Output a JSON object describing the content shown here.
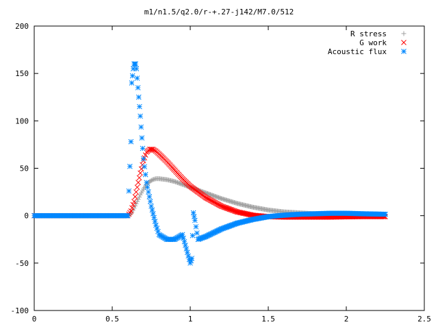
{
  "chart_data": {
    "type": "scatter",
    "title": "m1/n1.5/q2.0/r-+.27-j142/M7.0/512",
    "xlabel": "",
    "ylabel": "",
    "xlim": [
      0,
      2.5
    ],
    "ylim": [
      -100,
      200
    ],
    "x_ticks": [
      "0",
      "0.5",
      "1",
      "1.5",
      "2",
      "2.5"
    ],
    "y_ticks": [
      "-100",
      "-50",
      "0",
      "50",
      "100",
      "150",
      "200"
    ],
    "grid": false,
    "legend_position": "top-right",
    "series": [
      {
        "name": "R stress",
        "marker": "+",
        "color": "#a0a0a0",
        "x": [
          0.0,
          0.3,
          0.6,
          0.62,
          0.64,
          0.66,
          0.68,
          0.7,
          0.72,
          0.74,
          0.76,
          0.78,
          0.8,
          0.85,
          0.9,
          0.95,
          1.0,
          1.05,
          1.1,
          1.2,
          1.3,
          1.4,
          1.5,
          1.6,
          1.7,
          1.8,
          1.9,
          2.0,
          2.1,
          2.25
        ],
        "y": [
          0,
          0,
          0,
          2,
          8,
          15,
          22,
          28,
          33,
          36,
          38,
          39,
          39,
          38,
          36,
          33,
          30,
          27,
          24,
          18,
          13,
          9,
          6,
          4,
          3,
          2,
          1.5,
          1,
          0.5,
          0
        ]
      },
      {
        "name": "G work",
        "marker": "x",
        "color": "#ff0000",
        "x": [
          0.0,
          0.3,
          0.6,
          0.62,
          0.64,
          0.66,
          0.68,
          0.7,
          0.72,
          0.74,
          0.76,
          0.78,
          0.8,
          0.85,
          0.9,
          0.95,
          1.0,
          1.1,
          1.2,
          1.3,
          1.4,
          1.5,
          1.6,
          1.7,
          1.8,
          1.9,
          2.0,
          2.1,
          2.25
        ],
        "y": [
          0,
          0,
          0,
          5,
          15,
          30,
          45,
          58,
          67,
          70,
          70,
          68,
          65,
          57,
          48,
          39,
          31,
          19,
          10,
          4,
          0.5,
          -1,
          -1.5,
          -1.5,
          -1.5,
          -1.5,
          -1.2,
          -1,
          -1
        ]
      },
      {
        "name": "Acoustic flux",
        "marker": "*",
        "color": "#0088ff",
        "x": [
          0.0,
          0.3,
          0.6,
          0.62,
          0.625,
          0.635,
          0.64,
          0.65,
          0.655,
          0.66,
          0.67,
          0.68,
          0.69,
          0.7,
          0.72,
          0.75,
          0.78,
          0.8,
          0.85,
          0.9,
          0.95,
          1.0,
          1.01,
          1.02,
          1.03,
          1.05,
          1.1,
          1.2,
          1.3,
          1.4,
          1.5,
          1.6,
          1.7,
          1.8,
          1.9,
          2.0,
          2.1,
          2.25
        ],
        "y": [
          0,
          0,
          0,
          78,
          140,
          155,
          160,
          160,
          155,
          145,
          125,
          105,
          82,
          60,
          35,
          10,
          -10,
          -20,
          -25,
          -25,
          -20,
          -50,
          -45,
          3,
          -5,
          -25,
          -22,
          -14,
          -8,
          -4,
          -1,
          0.5,
          1.5,
          2,
          2.5,
          2.5,
          2,
          1.5
        ]
      }
    ]
  }
}
